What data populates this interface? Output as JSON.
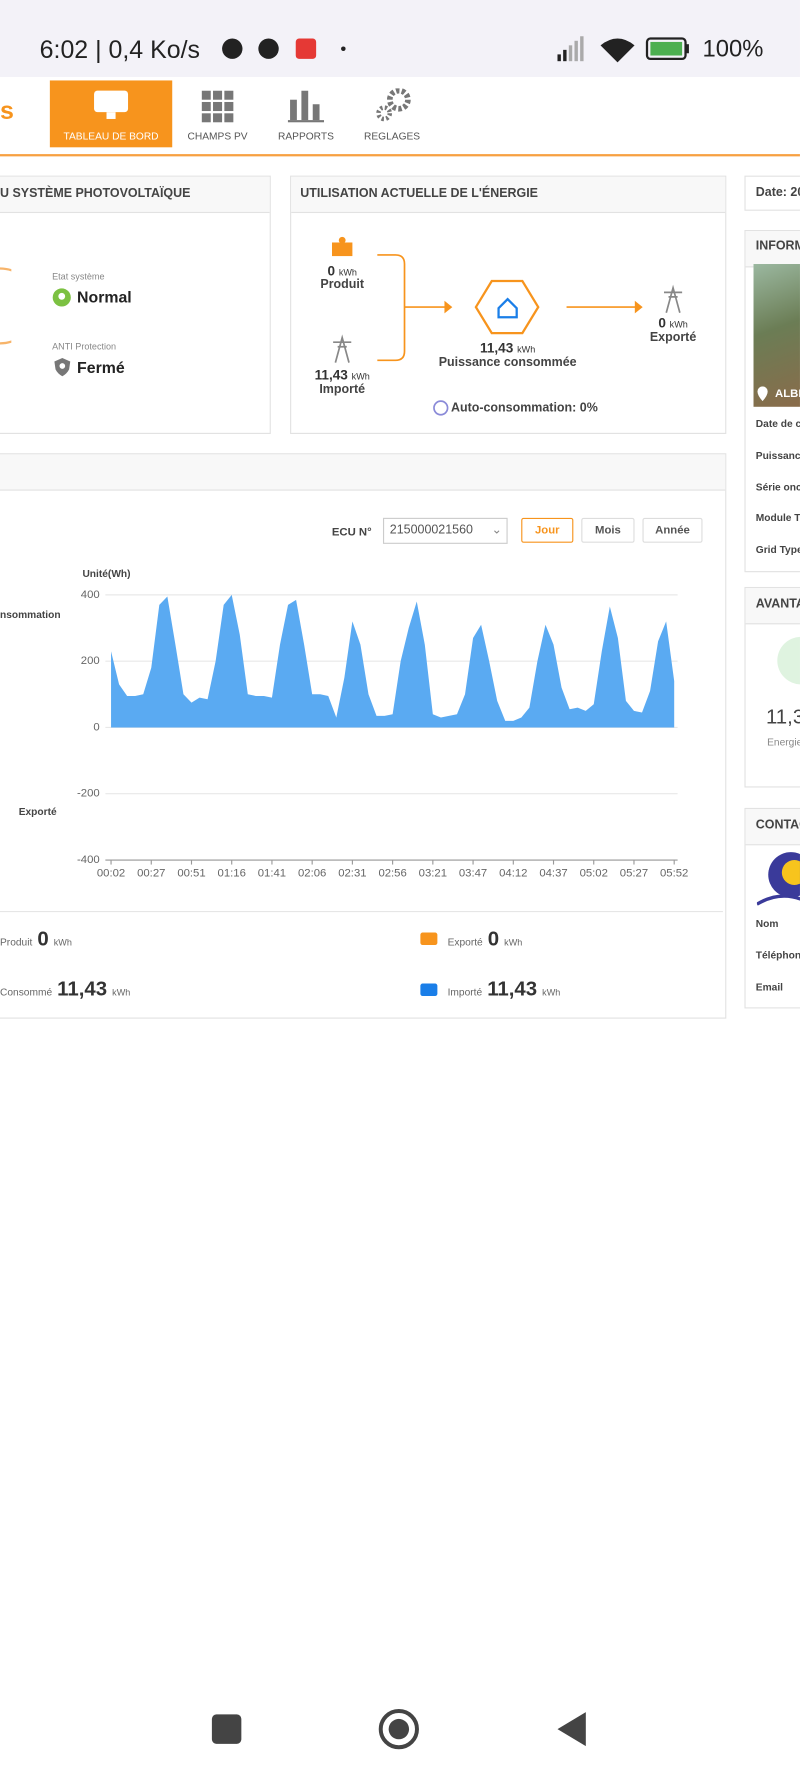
{
  "status_bar": {
    "time": "6:02 | 0,4 Ko/s",
    "battery": "100%"
  },
  "nav": {
    "logo": "s",
    "items": [
      "TABLEAU DE BORD",
      "CHAMPS PV",
      "RAPPORTS",
      "REGLAGES"
    ]
  },
  "system_panel": {
    "title": "U SYSTÈME PHOTOVOLTAÏQUE",
    "state_label": "Etat système",
    "state": "Normal",
    "anti_label": "ANTI Protection",
    "anti": "Fermé"
  },
  "energy_panel": {
    "title": "UTILISATION ACTUELLE DE L'ÉNERGIE",
    "produced_value": "0",
    "produced_unit": "kWh",
    "produced_label": "Produit",
    "imported_value": "11,43",
    "imported_unit": "kWh",
    "imported_label": "Importé",
    "consumed_value": "11,43",
    "consumed_unit": "kWh",
    "consumed_label": "Puissance consommée",
    "exported_value": "0",
    "exported_unit": "kWh",
    "exported_label": "Exporté",
    "self_consumption": "Auto-consommation: 0%"
  },
  "chart_panel": {
    "ecu_label": "ECU N°",
    "ecu": "215000021560",
    "buttons": [
      "Jour",
      "Mois",
      "Année"
    ],
    "summary": [
      {
        "label": "Produit",
        "value": "0",
        "unit": "kWh"
      },
      {
        "label": "Exporté",
        "value": "0",
        "unit": "kWh"
      },
      {
        "label": "Consommé",
        "value": "11,43",
        "unit": "kWh"
      },
      {
        "label": "Importé",
        "value": "11,43",
        "unit": "kWh"
      }
    ]
  },
  "chart_data": {
    "type": "area",
    "y_label": "Unité(Wh)",
    "annotations": [
      "nsommation",
      "Exporté"
    ],
    "categories": [
      "00:02",
      null,
      null,
      null,
      null,
      "00:27",
      null,
      null,
      null,
      null,
      "00:51",
      null,
      null,
      null,
      null,
      "01:16",
      null,
      null,
      null,
      null,
      "01:41",
      null,
      null,
      null,
      null,
      "02:06",
      null,
      null,
      null,
      null,
      "02:31",
      null,
      null,
      null,
      null,
      "02:56",
      null,
      null,
      null,
      null,
      "03:21",
      null,
      null,
      null,
      null,
      "03:47",
      null,
      null,
      null,
      null,
      "04:12",
      null,
      null,
      null,
      null,
      "04:37",
      null,
      null,
      null,
      null,
      "05:02",
      null,
      null,
      null,
      null,
      "05:27",
      null,
      null,
      null,
      null,
      "05:52"
    ],
    "series": [
      {
        "color": "#5aaaf2",
        "values": [
          230,
          130,
          95,
          95,
          100,
          180,
          370,
          395,
          250,
          100,
          75,
          90,
          85,
          200,
          370,
          400,
          280,
          100,
          95,
          95,
          90,
          250,
          370,
          385,
          250,
          100,
          100,
          95,
          30,
          150,
          320,
          250,
          100,
          35,
          35,
          40,
          200,
          300,
          380,
          250,
          40,
          30,
          35,
          40,
          100,
          270,
          310,
          200,
          80,
          20,
          20,
          30,
          60,
          200,
          310,
          250,
          120,
          55,
          60,
          50,
          70,
          230,
          365,
          270,
          80,
          50,
          45,
          110,
          260,
          320,
          140
        ]
      }
    ],
    "ylim": [
      -400,
      400
    ],
    "yticks": [
      -400,
      -200,
      0,
      200,
      400
    ],
    "grid": true
  },
  "right_column": {
    "date": "Date: 20",
    "info_title": "INFORM",
    "location": "ALBI",
    "info_rows": [
      "Date de c",
      "Puissanc",
      "Série onc",
      "Module T",
      "Grid Type"
    ],
    "adv_title": "AVANTA",
    "adv_value": "11,3",
    "adv_label": "Energie",
    "contact_title": "CONTAC",
    "contact_rows": [
      "Nom",
      "Téléphon",
      "Email"
    ]
  }
}
